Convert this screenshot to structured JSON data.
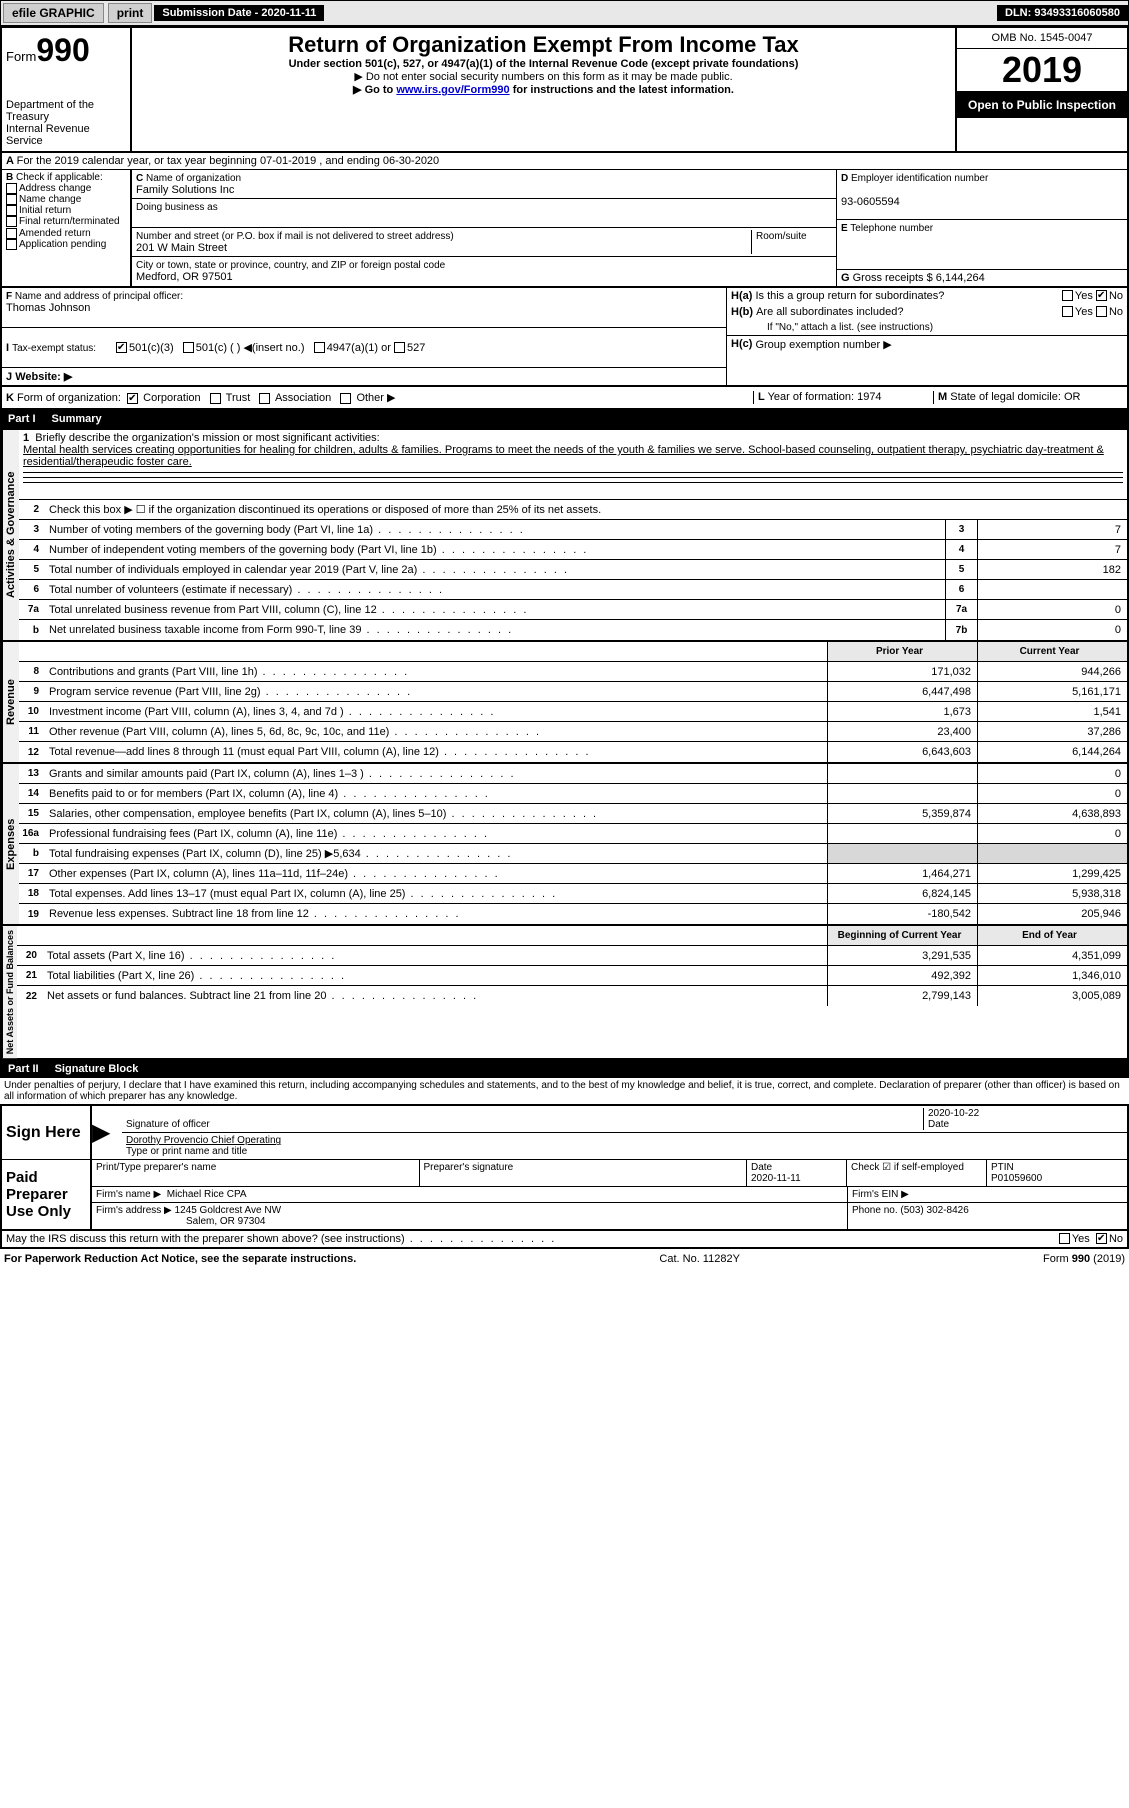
{
  "topbar": {
    "efile": "efile GRAPHIC",
    "print": "print",
    "submission_label": "Submission Date - 2020-11-11",
    "dln": "DLN: 93493316060580"
  },
  "header": {
    "form_label": "Form",
    "form_num": "990",
    "dept": "Department of the Treasury",
    "irs": "Internal Revenue Service",
    "title": "Return of Organization Exempt From Income Tax",
    "subtitle": "Under section 501(c), 527, or 4947(a)(1) of the Internal Revenue Code (except private foundations)",
    "note1": "Do not enter social security numbers on this form as it may be made public.",
    "note2_pre": "Go to ",
    "note2_link": "www.irs.gov/Form990",
    "note2_post": " for instructions and the latest information.",
    "omb": "OMB No. 1545-0047",
    "year": "2019",
    "open": "Open to Public Inspection"
  },
  "A": {
    "text": "For the 2019 calendar year, or tax year beginning 07-01-2019   , and ending 06-30-2020"
  },
  "B": {
    "label": "Check if applicable:",
    "items": [
      "Address change",
      "Name change",
      "Initial return",
      "Final return/terminated",
      "Amended return",
      "Application pending"
    ]
  },
  "C": {
    "name_label": "Name of organization",
    "name": "Family Solutions Inc",
    "dba_label": "Doing business as",
    "dba": "",
    "street_label": "Number and street (or P.O. box if mail is not delivered to street address)",
    "room_label": "Room/suite",
    "street": "201 W Main Street",
    "city_label": "City or town, state or province, country, and ZIP or foreign postal code",
    "city": "Medford, OR  97501"
  },
  "D": {
    "label": "Employer identification number",
    "val": "93-0605594"
  },
  "E": {
    "label": "Telephone number",
    "val": ""
  },
  "G": {
    "label": "Gross receipts $",
    "val": "6,144,264"
  },
  "F": {
    "label": "Name and address of principal officer:",
    "val": "Thomas Johnson"
  },
  "H": {
    "a": "Is this a group return for subordinates?",
    "b": "Are all subordinates included?",
    "b_note": "If \"No,\" attach a list. (see instructions)",
    "c": "Group exemption number ▶",
    "yes": "Yes",
    "no": "No",
    "a_checked": "no"
  },
  "I": {
    "label": "Tax-exempt status:",
    "opts": [
      "501(c)(3)",
      "501(c) (  ) ◀(insert no.)",
      "4947(a)(1) or",
      "527"
    ],
    "checked": 0
  },
  "J": {
    "label": "Website: ▶",
    "val": ""
  },
  "K": {
    "label": "Form of organization:",
    "opts": [
      "Corporation",
      "Trust",
      "Association",
      "Other ▶"
    ],
    "checked": 0
  },
  "L": {
    "label": "Year of formation:",
    "val": "1974"
  },
  "M": {
    "label": "State of legal domicile:",
    "val": "OR"
  },
  "partI": {
    "hdr_num": "Part I",
    "hdr_title": "Summary",
    "side1": "Activities & Governance",
    "side2": "Revenue",
    "side3": "Expenses",
    "side4": "Net Assets or Fund Balances",
    "mission_label": "Briefly describe the organization's mission or most significant activities:",
    "mission": "Mental health services creating opportunities for healing for children, adults & families. Programs to meet the needs of the youth & families we serve. School-based counseling, outpatient therapy, psychiatric day-treatment & residential/therapeudic foster care.",
    "line2": "Check this box ▶ ☐  if the organization discontinued its operations or disposed of more than 25% of its net assets.",
    "lines_gov": [
      {
        "n": "3",
        "t": "Number of voting members of the governing body (Part VI, line 1a)",
        "box": "3",
        "v": "7"
      },
      {
        "n": "4",
        "t": "Number of independent voting members of the governing body (Part VI, line 1b)",
        "box": "4",
        "v": "7"
      },
      {
        "n": "5",
        "t": "Total number of individuals employed in calendar year 2019 (Part V, line 2a)",
        "box": "5",
        "v": "182"
      },
      {
        "n": "6",
        "t": "Total number of volunteers (estimate if necessary)",
        "box": "6",
        "v": ""
      },
      {
        "n": "7a",
        "t": "Total unrelated business revenue from Part VIII, column (C), line 12",
        "box": "7a",
        "v": "0"
      },
      {
        "n": "b",
        "t": "Net unrelated business taxable income from Form 990-T, line 39",
        "box": "7b",
        "v": "0"
      }
    ],
    "col_hdr1": "Prior Year",
    "col_hdr2": "Current Year",
    "lines_rev": [
      {
        "n": "8",
        "t": "Contributions and grants (Part VIII, line 1h)",
        "p": "171,032",
        "c": "944,266"
      },
      {
        "n": "9",
        "t": "Program service revenue (Part VIII, line 2g)",
        "p": "6,447,498",
        "c": "5,161,171"
      },
      {
        "n": "10",
        "t": "Investment income (Part VIII, column (A), lines 3, 4, and 7d )",
        "p": "1,673",
        "c": "1,541"
      },
      {
        "n": "11",
        "t": "Other revenue (Part VIII, column (A), lines 5, 6d, 8c, 9c, 10c, and 11e)",
        "p": "23,400",
        "c": "37,286"
      },
      {
        "n": "12",
        "t": "Total revenue—add lines 8 through 11 (must equal Part VIII, column (A), line 12)",
        "p": "6,643,603",
        "c": "6,144,264"
      }
    ],
    "lines_exp": [
      {
        "n": "13",
        "t": "Grants and similar amounts paid (Part IX, column (A), lines 1–3 )",
        "p": "",
        "c": "0"
      },
      {
        "n": "14",
        "t": "Benefits paid to or for members (Part IX, column (A), line 4)",
        "p": "",
        "c": "0"
      },
      {
        "n": "15",
        "t": "Salaries, other compensation, employee benefits (Part IX, column (A), lines 5–10)",
        "p": "5,359,874",
        "c": "4,638,893"
      },
      {
        "n": "16a",
        "t": "Professional fundraising fees (Part IX, column (A), line 11e)",
        "p": "",
        "c": "0"
      },
      {
        "n": "b",
        "t": "Total fundraising expenses (Part IX, column (D), line 25) ▶5,634",
        "p": "SHADE",
        "c": "SHADE"
      },
      {
        "n": "17",
        "t": "Other expenses (Part IX, column (A), lines 11a–11d, 11f–24e)",
        "p": "1,464,271",
        "c": "1,299,425"
      },
      {
        "n": "18",
        "t": "Total expenses. Add lines 13–17 (must equal Part IX, column (A), line 25)",
        "p": "6,824,145",
        "c": "5,938,318"
      },
      {
        "n": "19",
        "t": "Revenue less expenses. Subtract line 18 from line 12",
        "p": "-180,542",
        "c": "205,946"
      }
    ],
    "col_hdr3": "Beginning of Current Year",
    "col_hdr4": "End of Year",
    "lines_net": [
      {
        "n": "20",
        "t": "Total assets (Part X, line 16)",
        "p": "3,291,535",
        "c": "4,351,099"
      },
      {
        "n": "21",
        "t": "Total liabilities (Part X, line 26)",
        "p": "492,392",
        "c": "1,346,010"
      },
      {
        "n": "22",
        "t": "Net assets or fund balances. Subtract line 21 from line 20",
        "p": "2,799,143",
        "c": "3,005,089"
      }
    ]
  },
  "partII": {
    "hdr_num": "Part II",
    "hdr_title": "Signature Block",
    "penalty": "Under penalties of perjury, I declare that I have examined this return, including accompanying schedules and statements, and to the best of my knowledge and belief, it is true, correct, and complete. Declaration of preparer (other than officer) is based on all information of which preparer has any knowledge.",
    "sign_here": "Sign Here",
    "sig_officer_label": "Signature of officer",
    "sig_date_label": "Date",
    "sig_date": "2020-10-22",
    "sig_name": "Dorothy Provencio  Chief Operating",
    "sig_name_label": "Type or print name and title",
    "paid_label": "Paid Preparer Use Only",
    "prep_name_label": "Print/Type preparer's name",
    "prep_sig_label": "Preparer's signature",
    "prep_date_label": "Date",
    "prep_date": "2020-11-11",
    "check_self": "Check ☑ if self-employed",
    "ptin_label": "PTIN",
    "ptin": "P01059600",
    "firm_name_label": "Firm's name    ▶",
    "firm_name": "Michael Rice CPA",
    "firm_ein_label": "Firm's EIN ▶",
    "firm_addr_label": "Firm's address ▶",
    "firm_addr1": "1245 Goldcrest Ave NW",
    "firm_addr2": "Salem, OR  97304",
    "firm_phone_label": "Phone no.",
    "firm_phone": "(503) 302-8426",
    "discuss": "May the IRS discuss this return with the preparer shown above? (see instructions)",
    "discuss_yes": "Yes",
    "discuss_no": "No",
    "discuss_checked": "no"
  },
  "footer": {
    "left": "For Paperwork Reduction Act Notice, see the separate instructions.",
    "mid": "Cat. No. 11282Y",
    "right": "Form 990 (2019)"
  }
}
